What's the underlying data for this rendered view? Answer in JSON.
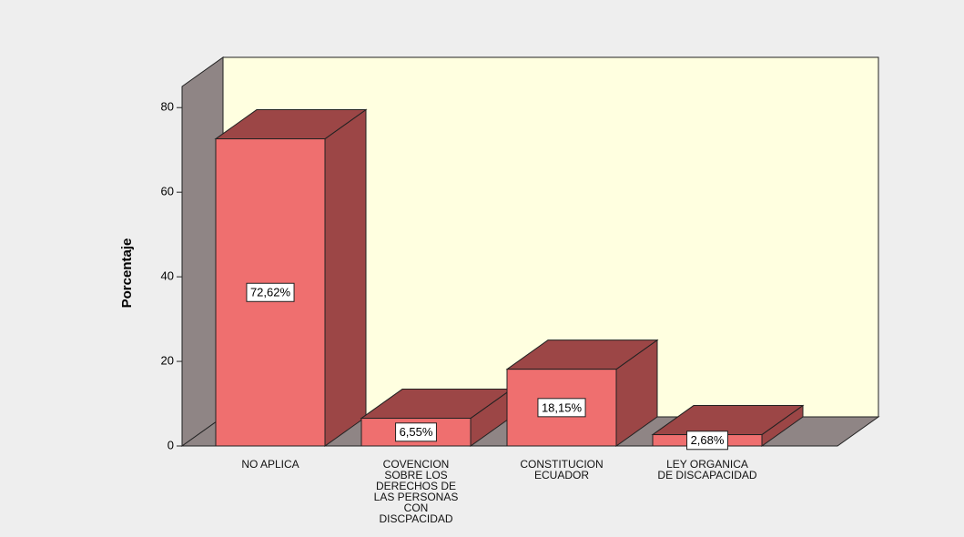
{
  "chart_data": {
    "type": "bar3d",
    "y_label": "Porcentaje",
    "categories": [
      "NO APLICA",
      "COVENCION\nSOBRE LOS\nDERECHOS DE\nLAS PERSONAS\nCON\nDISCPACIDAD",
      "CONSTITUCION\nECUADOR",
      "LEY ORGANICA\nDE DISCAPACIDAD"
    ],
    "values": [
      72.62,
      6.55,
      18.15,
      2.68
    ],
    "value_labels": [
      "72,62%",
      "6,55%",
      "18,15%",
      "2,68%"
    ],
    "color": "#ef6f6f",
    "side_color": "#9c4646",
    "ylim": [
      0,
      85
    ],
    "yticks": [
      0,
      20,
      40,
      60,
      80
    ],
    "grid": false
  }
}
